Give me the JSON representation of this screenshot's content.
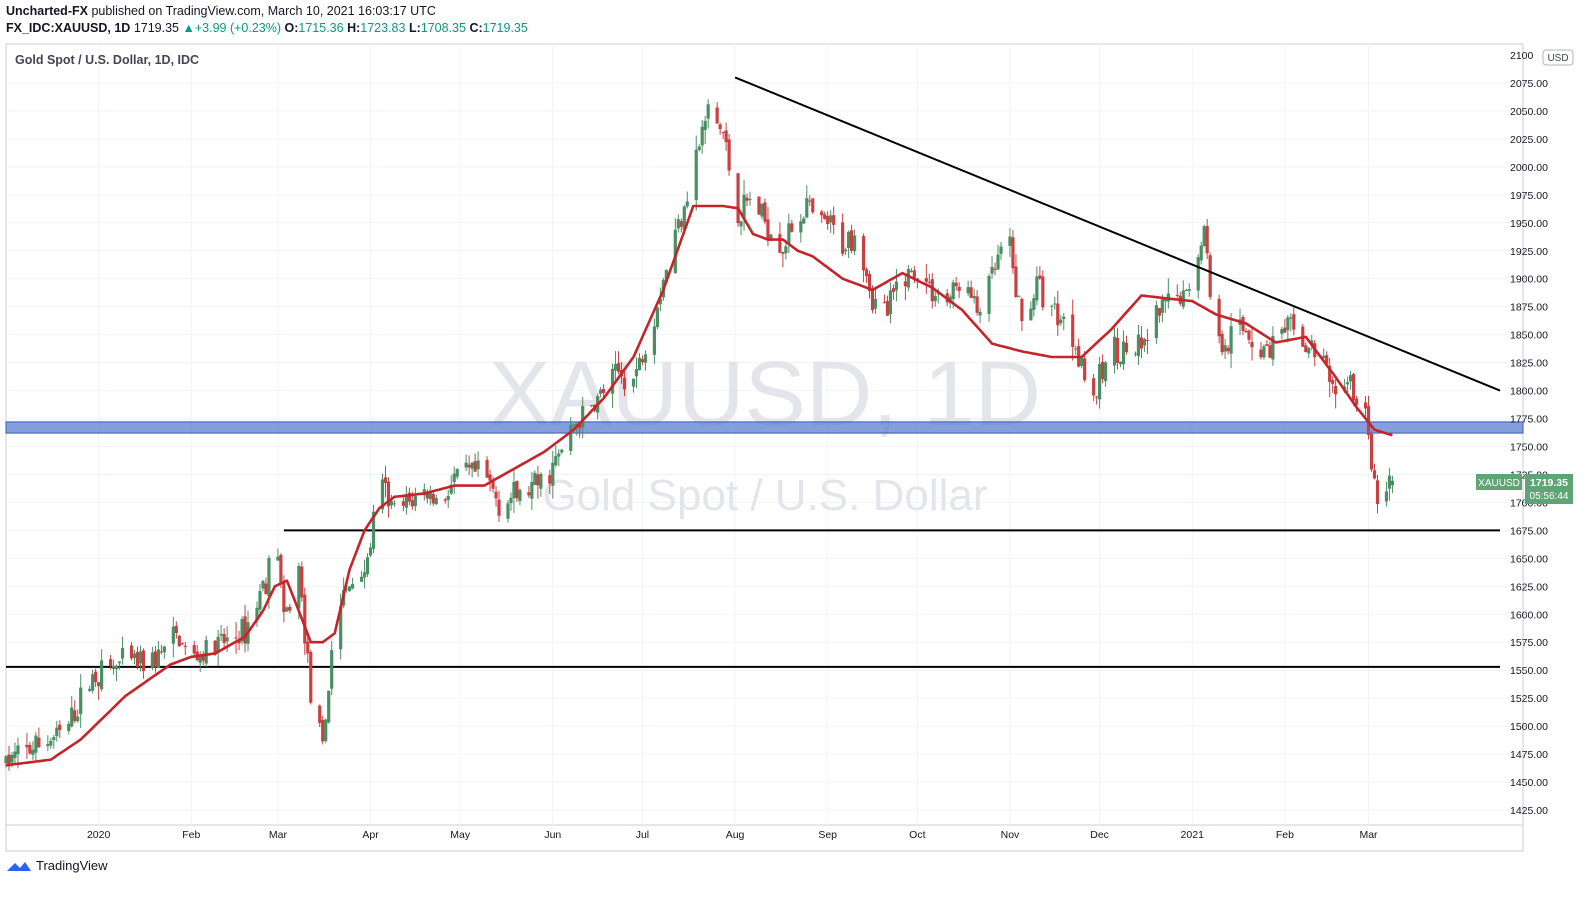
{
  "header": {
    "author": "Uncharted-FX",
    "published_text": "published on TradingView.com, March 10, 2021 16:03:17 UTC",
    "symbol": "FX_IDC:XAUUSD, 1D",
    "last": "1719.35",
    "change": "+3.99 (+0.23%)",
    "o_label": "O:",
    "o_value": "1715.36",
    "h_label": "H:",
    "h_value": "1723.83",
    "l_label": "L:",
    "l_value": "1708.35",
    "c_label": "C:",
    "c_value": "1719.35"
  },
  "footer": {
    "brand": "TradingView"
  },
  "chart_data": {
    "type": "candlestick",
    "title": "Gold Spot / U.S. Dollar, 1D, IDC",
    "watermark_symbol": "XAUUSD, 1D",
    "watermark_name": "Gold Spot / U.S. Dollar",
    "currency": "USD",
    "ylim": [
      1412,
      2100
    ],
    "y_ticks": [
      1425,
      1450,
      1475,
      1500,
      1525,
      1550,
      1575,
      1600,
      1625,
      1650,
      1675,
      1700,
      1725,
      1750,
      1775,
      1800,
      1825,
      1850,
      1875,
      1900,
      1925,
      1950,
      1975,
      2000,
      2025,
      2050,
      2075
    ],
    "y_top_label_partial": "2100",
    "x_ticks": [
      "2020",
      "Feb",
      "Mar",
      "Apr",
      "May",
      "Jun",
      "Jul",
      "Aug",
      "Sep",
      "Oct",
      "Nov",
      "Dec",
      "2021",
      "Feb",
      "Mar"
    ],
    "x_tick_days": [
      31,
      62,
      91,
      122,
      152,
      183,
      213,
      244,
      275,
      305,
      336,
      366,
      397,
      428,
      456
    ],
    "x_range_days": [
      0,
      500
    ],
    "price_label": {
      "symbol": "XAUUSD",
      "price": "1719.35",
      "countdown": "05:56:44"
    },
    "ohlc_anchor_days": [
      0,
      20,
      29,
      38,
      50,
      57,
      62,
      70,
      80,
      88,
      91,
      93,
      98,
      102,
      106,
      110,
      114,
      117,
      121,
      125,
      130,
      135,
      140,
      145,
      150,
      155,
      160,
      165,
      170,
      175,
      180,
      185,
      190,
      195,
      200,
      205,
      210,
      215,
      220,
      225,
      230,
      235,
      240,
      245,
      250,
      253,
      256,
      260,
      264,
      268,
      272,
      275,
      280,
      285,
      290,
      295,
      300,
      305,
      310,
      315,
      320,
      325,
      330,
      335,
      340,
      345,
      350,
      355,
      360,
      363,
      365,
      370,
      375,
      380,
      385,
      390,
      395,
      397,
      401,
      405,
      410,
      415,
      420,
      425,
      430,
      435,
      440,
      445,
      450,
      452,
      455,
      457,
      460,
      464
    ],
    "close_anchors": [
      1468,
      1495,
      1545,
      1555,
      1560,
      1580,
      1560,
      1570,
      1585,
      1640,
      1660,
      1590,
      1640,
      1530,
      1475,
      1600,
      1620,
      1635,
      1645,
      1720,
      1690,
      1700,
      1710,
      1700,
      1720,
      1725,
      1725,
      1700,
      1705,
      1710,
      1720,
      1740,
      1770,
      1780,
      1800,
      1815,
      1810,
      1850,
      1900,
      1950,
      2000,
      2050,
      2030,
      1955,
      1975,
      1955,
      1945,
      1930,
      1950,
      1965,
      1945,
      1950,
      1930,
      1945,
      1880,
      1870,
      1905,
      1905,
      1890,
      1880,
      1900,
      1870,
      1900,
      1940,
      1860,
      1895,
      1875,
      1860,
      1830,
      1780,
      1800,
      1840,
      1835,
      1835,
      1865,
      1880,
      1885,
      1905,
      1945,
      1840,
      1850,
      1855,
      1835,
      1845,
      1855,
      1840,
      1830,
      1800,
      1810,
      1780,
      1790,
      1725,
      1700,
      1719
    ],
    "ma_anchor_days": [
      0,
      15,
      25,
      40,
      55,
      62,
      70,
      80,
      86,
      90,
      94,
      97,
      102,
      106,
      110,
      115,
      120,
      125,
      130,
      140,
      150,
      160,
      170,
      180,
      190,
      200,
      210,
      220,
      230,
      240,
      245,
      250,
      255,
      260,
      265,
      270,
      280,
      290,
      300,
      310,
      320,
      330,
      340,
      350,
      360,
      370,
      380,
      390,
      397,
      405,
      415,
      425,
      435,
      445,
      452,
      458,
      464
    ],
    "ma_anchors": [
      1465,
      1470,
      1488,
      1527,
      1555,
      1562,
      1565,
      1580,
      1603,
      1625,
      1630,
      1610,
      1575,
      1575,
      1583,
      1640,
      1675,
      1695,
      1705,
      1708,
      1715,
      1715,
      1730,
      1745,
      1765,
      1793,
      1830,
      1890,
      1965,
      1965,
      1963,
      1940,
      1935,
      1935,
      1925,
      1920,
      1900,
      1890,
      1905,
      1892,
      1872,
      1842,
      1835,
      1830,
      1830,
      1855,
      1885,
      1882,
      1880,
      1868,
      1860,
      1843,
      1848,
      1812,
      1785,
      1765,
      1760
    ],
    "ma_color": "#c4242a",
    "up_color": "#4a8f63",
    "down_color": "#c84040",
    "support_zone": [
      1762,
      1772
    ],
    "support_zone_color": "#5b7fd2",
    "horizontal_lines": [
      {
        "price": 1675,
        "from_day": 93,
        "to_day": 500
      },
      {
        "price": 1553,
        "from_day": 0,
        "to_day": 500
      }
    ],
    "trendline": {
      "from_day": 244,
      "from_price": 2080,
      "to_day": 500,
      "to_price": 1800
    }
  }
}
